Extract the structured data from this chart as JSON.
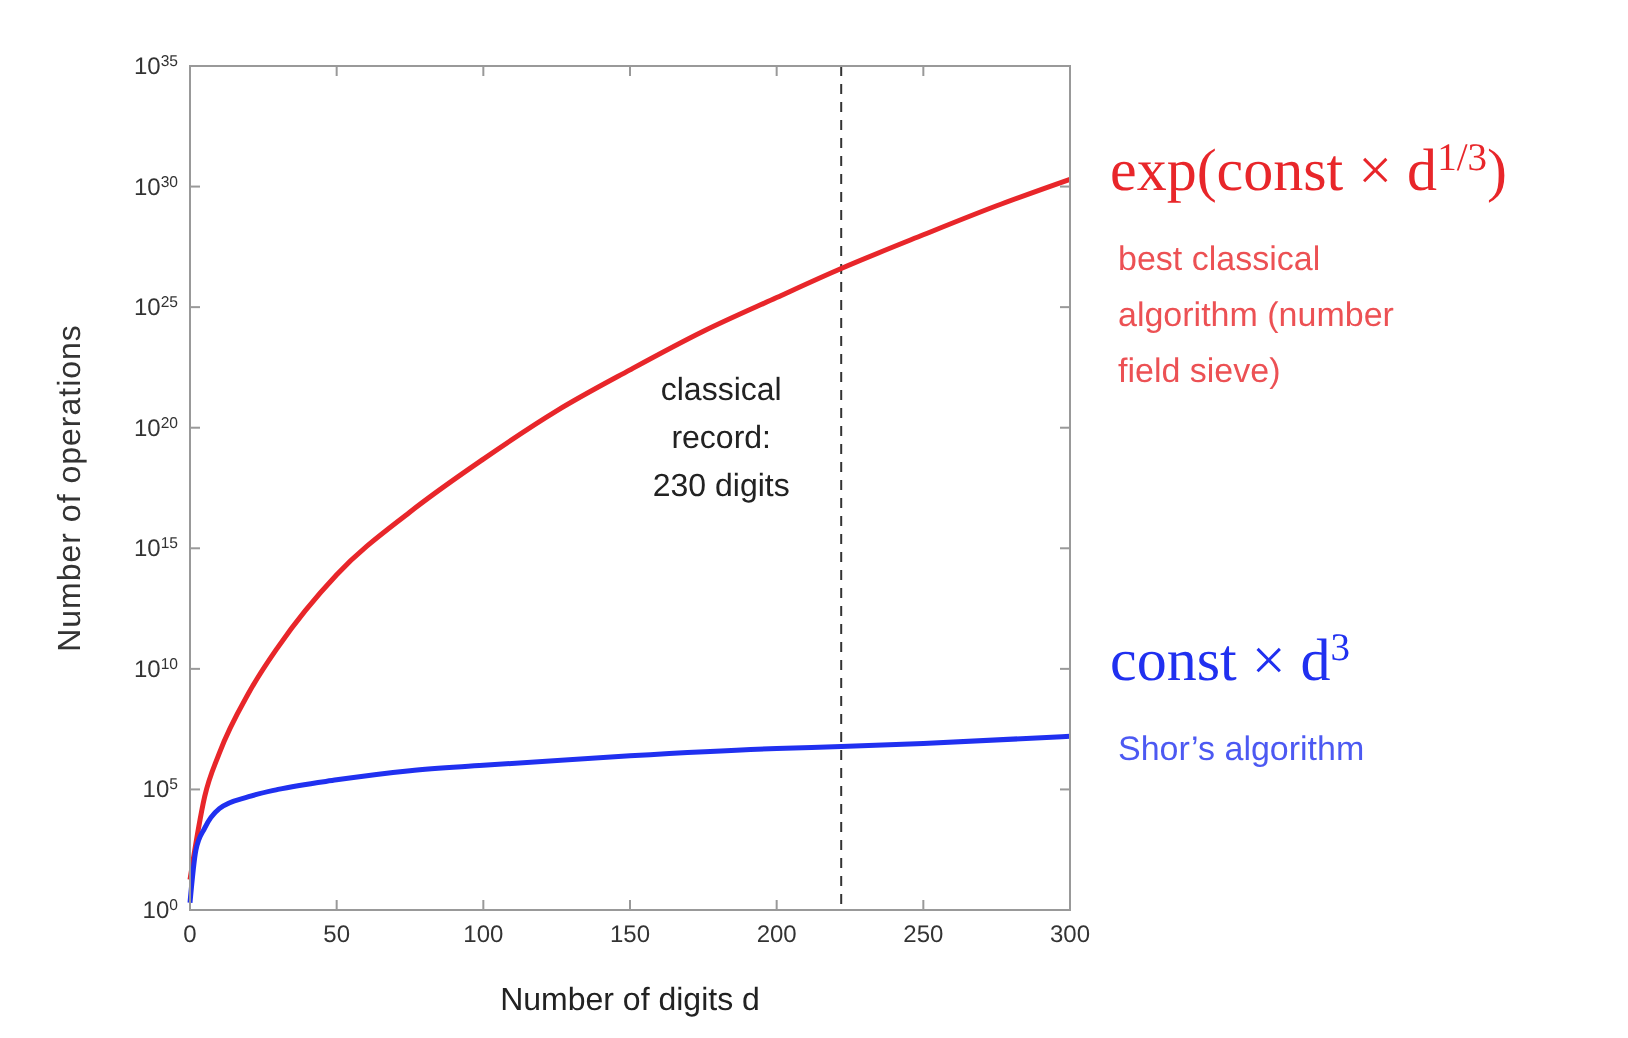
{
  "chart_data": {
    "type": "line",
    "xlabel": "Number of digits d",
    "ylabel": "Number of operations",
    "log": true,
    "xlim": [
      0,
      300
    ],
    "xticks": [
      0,
      50,
      100,
      150,
      200,
      250,
      300
    ],
    "ylim": [
      1,
      1e+35
    ],
    "yticks": [
      {
        "value": 1,
        "label": "10$^{0}$"
      },
      {
        "value": 100000.0,
        "label": "10$^{5}$"
      },
      {
        "value": 10000000000.0,
        "label": "10$^{10}$"
      },
      {
        "value": 1000000000000000.0,
        "label": "10$^{15}$"
      },
      {
        "value": 1e+20,
        "label": "10$^{20}$"
      },
      {
        "value": 1e+25,
        "label": "10$^{25}$"
      },
      {
        "value": 1e+30,
        "label": "10$^{30}$"
      },
      {
        "value": 1e+35,
        "label": "10$^{35}$"
      }
    ],
    "legend": "right",
    "grid": false,
    "line_style": "solid",
    "marker": "none",
    "series": [
      {
        "name": "exp(const × d$^{1/3}$)",
        "color": "#e8262a",
        "x": [
          0,
          5,
          10,
          20,
          30,
          50,
          75,
          100,
          125,
          150,
          175,
          200,
          222,
          250,
          275,
          300
        ],
        "values": [
          18,
          50000.0,
          3200000.0,
          1000000000.0,
          80000000000.0,
          80000000000000.0,
          3.2e+16,
          5e+18,
          5e+20,
          2.5e+22,
          1e+24,
          2.5e+25,
          4e+26,
          1e+28,
          1.6e+29,
          2e+30
        ]
      },
      {
        "name": "const × d$^{3}$",
        "color": "#2030f0",
        "x": [
          0,
          2,
          5,
          10,
          20,
          30,
          50,
          75,
          100,
          150,
          200,
          222,
          250,
          300
        ],
        "values": [
          2,
          300,
          2500,
          16000,
          50000,
          100000.0,
          250000.0,
          600000.0,
          1000000.0,
          2500000.0,
          5000000.0,
          6000000.0,
          8000000.0,
          16000000.0
        ]
      }
    ],
    "ref_lines": [
      {
        "axis": "x",
        "value": 222,
        "color": "#333333",
        "line_style": "dashed"
      }
    ],
    "annotations": [
      "classical record: 230 digits",
      "best classical algorithm (number field sieve)",
      "Shor’s algorithm"
    ]
  }
}
